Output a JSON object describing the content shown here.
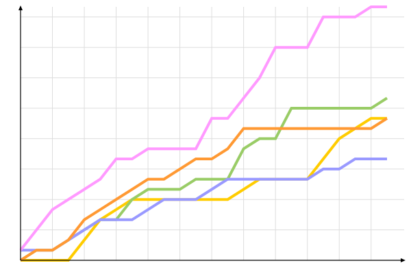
{
  "chart_data": {
    "type": "line",
    "title": "",
    "xlabel": "",
    "ylabel": "",
    "xlim": [
      0,
      23
    ],
    "ylim": [
      0,
      25
    ],
    "grid": true,
    "x_grid_step": 2,
    "y_grid_step": 3,
    "x": [
      0,
      1,
      2,
      3,
      4,
      5,
      6,
      7,
      8,
      9,
      10,
      11,
      12,
      13,
      14,
      15,
      16,
      17,
      18,
      19,
      20,
      21,
      22,
      23
    ],
    "series": [
      {
        "color": "#ffcc00",
        "values": [
          0,
          0,
          0,
          0,
          2,
          4,
          5,
          6,
          6,
          6,
          6,
          6,
          6,
          6,
          7,
          8,
          8,
          8,
          8,
          10,
          12,
          13,
          14,
          14
        ]
      },
      {
        "color": "#99cc66",
        "values": [
          0,
          1,
          1,
          2,
          3,
          4,
          4,
          6,
          7,
          7,
          7,
          8,
          8,
          8,
          11,
          12,
          12,
          15,
          15,
          15,
          15,
          15,
          15,
          16
        ]
      },
      {
        "color": "#9999ff",
        "values": [
          1,
          1,
          1,
          2,
          3,
          4,
          4,
          4,
          5,
          6,
          6,
          6,
          7,
          8,
          8,
          8,
          8,
          8,
          8,
          9,
          9,
          10,
          10,
          10
        ]
      },
      {
        "color": "#ff9933",
        "values": [
          0,
          1,
          1,
          2,
          4,
          5,
          6,
          7,
          8,
          8,
          9,
          10,
          10,
          11,
          13,
          13,
          13,
          13,
          13,
          13,
          13,
          13,
          13,
          14
        ]
      },
      {
        "color": "#ff99ff",
        "values": [
          1,
          3,
          5,
          6,
          7,
          8,
          10,
          10,
          11,
          11,
          11,
          11,
          14,
          14,
          16,
          18,
          21,
          21,
          21,
          24,
          24,
          24,
          25,
          25
        ]
      }
    ],
    "colors": {
      "grid": "#dddddd",
      "axis": "#000000"
    }
  }
}
